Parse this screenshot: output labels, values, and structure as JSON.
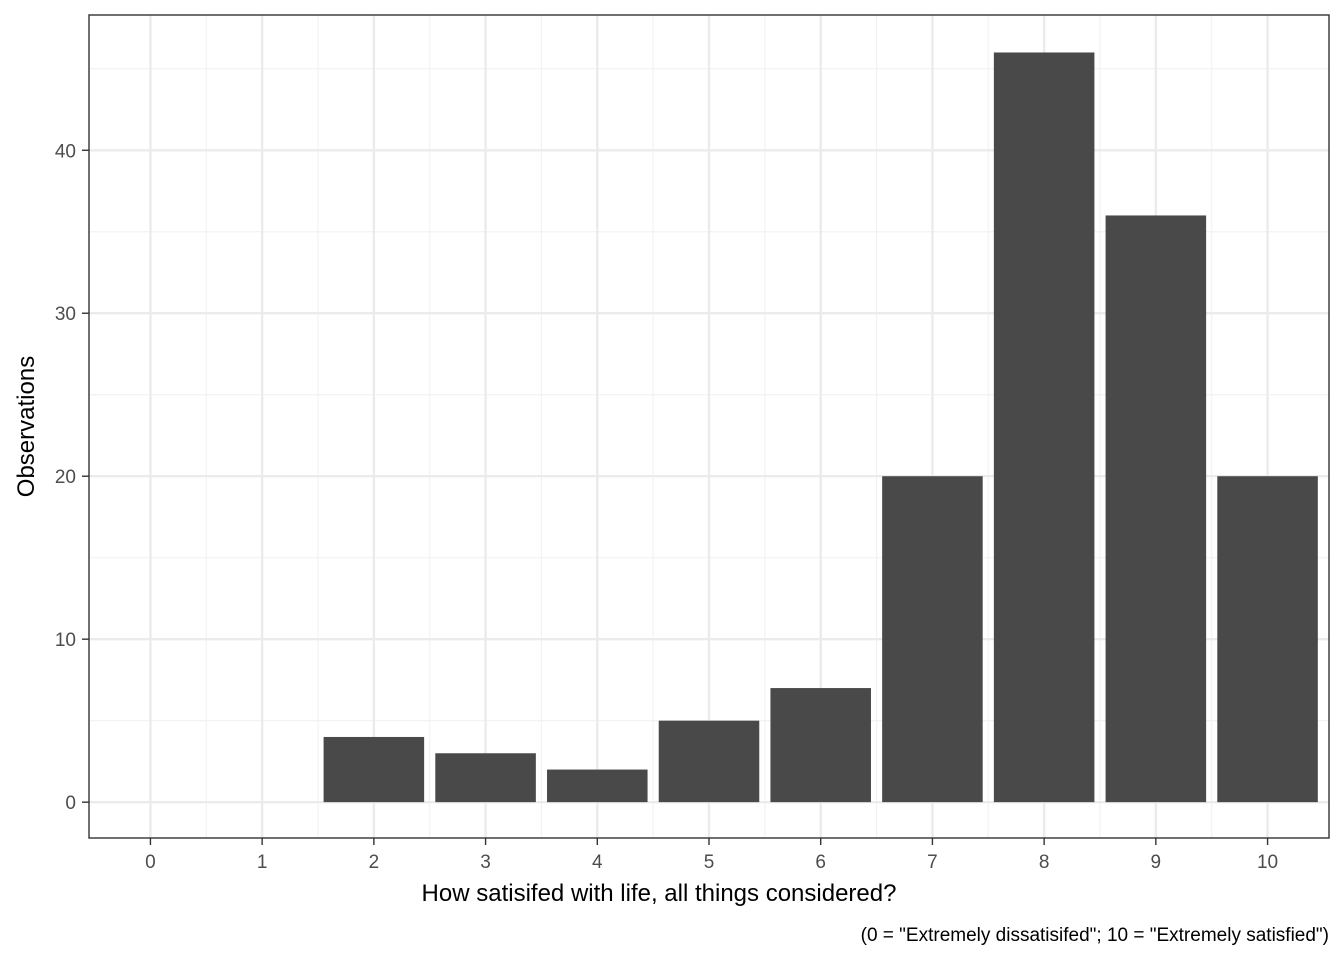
{
  "chart_data": {
    "type": "bar",
    "categories": [
      "0",
      "1",
      "2",
      "3",
      "4",
      "5",
      "6",
      "7",
      "8",
      "9",
      "10"
    ],
    "values": [
      0,
      0,
      4,
      3,
      2,
      5,
      7,
      20,
      46,
      36,
      20
    ],
    "title": "",
    "xlabel": "How satisifed with life, all things considered?",
    "ylabel": "Observations",
    "caption": "(0 = \"Extremely dissatisifed\"; 10 = \"Extremely satisfied\")",
    "xlim": [
      -0.55,
      10.55
    ],
    "ylim": [
      -2.2,
      48.3
    ],
    "yticks": [
      0,
      10,
      20,
      30,
      40
    ],
    "grid": true,
    "bar_color": "#494949",
    "grid_major_color": "#ebebeb",
    "grid_minor_color": "#f2f2f2",
    "panel_border_color": "#333333"
  }
}
